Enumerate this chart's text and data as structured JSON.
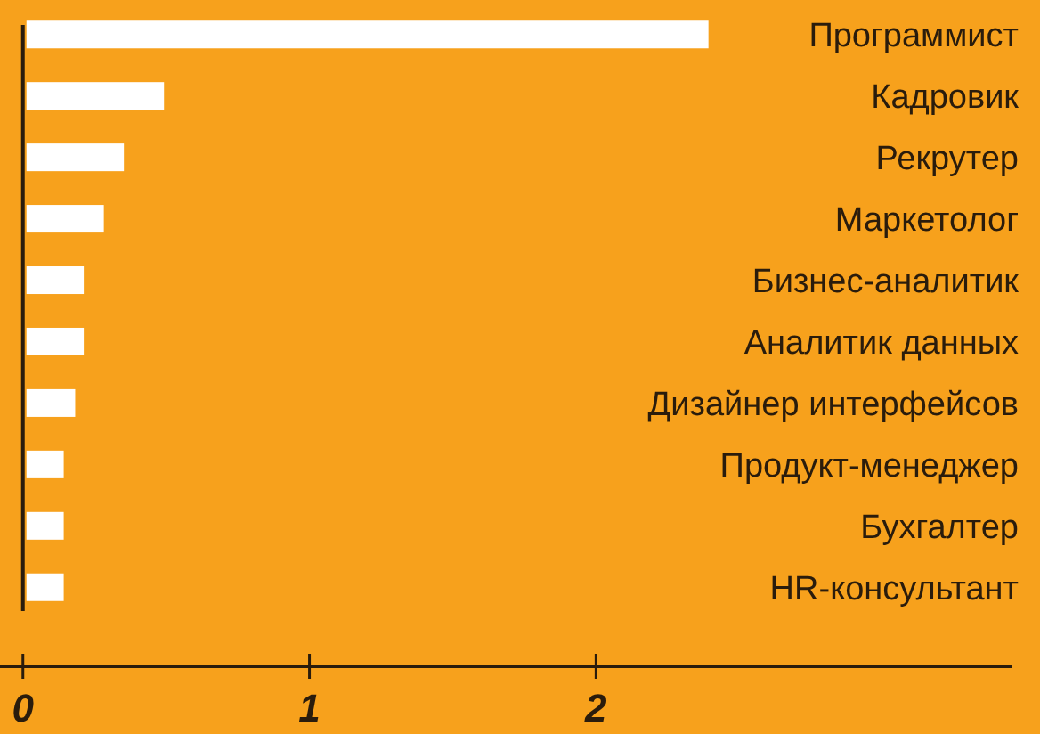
{
  "chart_data": {
    "type": "bar",
    "orientation": "horizontal",
    "categories": [
      "Программист",
      "Кадровик",
      "Рекрутер",
      "Маркетолог",
      "Бизнес-аналитик",
      "Аналитик данных",
      "Дизайнер интерфейсов",
      "Продукт-менеджер",
      "Бухгалтер",
      "HR-консультант"
    ],
    "values": [
      2.38,
      0.48,
      0.34,
      0.27,
      0.2,
      0.2,
      0.17,
      0.13,
      0.13,
      0.13
    ],
    "color": "#ffffff",
    "xlim": [
      -0.08,
      3.45
    ],
    "xticks": [
      0,
      1,
      2
    ]
  }
}
